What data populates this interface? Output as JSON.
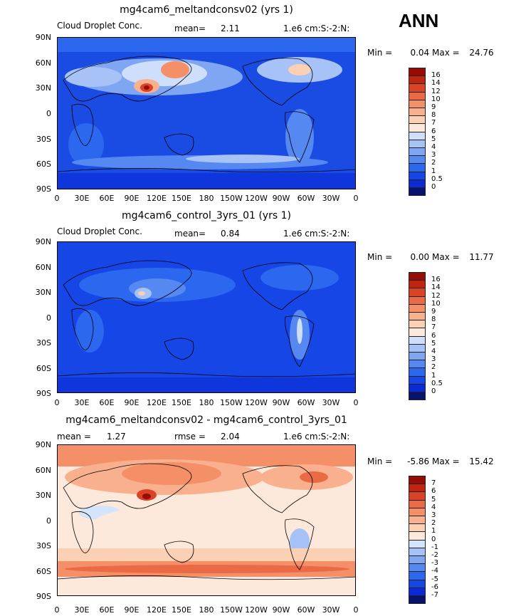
{
  "season_label": "ANN",
  "panels": [
    {
      "title": "mg4cam6_meltandconsv02 (yrs 1)",
      "variable": "Cloud Droplet Conc.",
      "stat_label": "mean=",
      "stat_value": "2.11",
      "units": "1.e6 cm:S:-2:N:",
      "min_label": "Min =",
      "min_value": "0.04",
      "max_label": "Max =",
      "max_value": "24.76"
    },
    {
      "title": "mg4cam6_control_3yrs_01 (yrs 1)",
      "variable": "Cloud Droplet Conc.",
      "stat_label": "mean=",
      "stat_value": "0.84",
      "units": "1.e6 cm:S:-2:N:",
      "min_label": "Min =",
      "min_value": "0.00",
      "max_label": "Max =",
      "max_value": "11.77"
    },
    {
      "title": "mg4cam6_meltandconsv02 - mg4cam6_control_3yrs_01",
      "mean_label": "mean =",
      "mean_value": "1.27",
      "rmse_label": "rmse =",
      "rmse_value": "2.04",
      "units": "1.e6 cm:S:-2:N:",
      "min_label": "Min =",
      "min_value": "-5.86",
      "max_label": "Max =",
      "max_value": "15.42"
    }
  ],
  "chart_data": [
    {
      "type": "heatmap",
      "title": "mg4cam6_meltandconsv02 (yrs 1)",
      "variable": "Cloud Droplet Conc.",
      "units": "1.e6 cm:S:-2:N:",
      "mean": 2.11,
      "min": 0.04,
      "max": 24.76,
      "lat_range": [
        -90,
        90
      ],
      "lon_range": [
        0,
        360
      ],
      "lat_ticks": [
        "90N",
        "60N",
        "30N",
        "0",
        "30S",
        "60S",
        "90S"
      ],
      "lon_ticks": [
        "0",
        "30E",
        "60E",
        "90E",
        "120E",
        "150E",
        "180",
        "150W",
        "120W",
        "90W",
        "60W",
        "30W",
        "0"
      ],
      "levels": [
        "0",
        "0.5",
        "1",
        "2",
        "3",
        "4",
        "5",
        "6",
        "7",
        "8",
        "9",
        "10",
        "12",
        "14",
        "16"
      ],
      "colors": [
        "#08136e",
        "#0a2ad6",
        "#1646e6",
        "#2c68ef",
        "#5588f1",
        "#7fa6f3",
        "#a7c2f6",
        "#cfdefa",
        "#fde9dc",
        "#fcd0b5",
        "#f9b08e",
        "#f58f68",
        "#ea6a46",
        "#d94426",
        "#bf2410",
        "#960c04"
      ]
    },
    {
      "type": "heatmap",
      "title": "mg4cam6_control_3yrs_01 (yrs 1)",
      "variable": "Cloud Droplet Conc.",
      "units": "1.e6 cm:S:-2:N:",
      "mean": 0.84,
      "min": 0.0,
      "max": 11.77,
      "lat_range": [
        -90,
        90
      ],
      "lon_range": [
        0,
        360
      ],
      "lat_ticks": [
        "90N",
        "60N",
        "30N",
        "0",
        "30S",
        "60S",
        "90S"
      ],
      "lon_ticks": [
        "0",
        "30E",
        "60E",
        "90E",
        "120E",
        "150E",
        "180",
        "150W",
        "120W",
        "90W",
        "60W",
        "30W",
        "0"
      ],
      "levels": [
        "0",
        "0.5",
        "1",
        "2",
        "3",
        "4",
        "5",
        "6",
        "7",
        "8",
        "9",
        "10",
        "12",
        "14",
        "16"
      ],
      "colors": [
        "#08136e",
        "#0a2ad6",
        "#1646e6",
        "#2c68ef",
        "#5588f1",
        "#7fa6f3",
        "#a7c2f6",
        "#cfdefa",
        "#fde9dc",
        "#fcd0b5",
        "#f9b08e",
        "#f58f68",
        "#ea6a46",
        "#d94426",
        "#bf2410",
        "#960c04"
      ]
    },
    {
      "type": "heatmap",
      "title": "mg4cam6_meltandconsv02 - mg4cam6_control_3yrs_01",
      "units": "1.e6 cm:S:-2:N:",
      "mean": 1.27,
      "rmse": 2.04,
      "min": -5.86,
      "max": 15.42,
      "lat_range": [
        -90,
        90
      ],
      "lon_range": [
        0,
        360
      ],
      "lat_ticks": [
        "90N",
        "60N",
        "30N",
        "0",
        "30S",
        "60S",
        "90S"
      ],
      "lon_ticks": [
        "0",
        "30E",
        "60E",
        "90E",
        "120E",
        "150E",
        "180",
        "150W",
        "120W",
        "90W",
        "60W",
        "30W",
        "0"
      ],
      "levels": [
        "-7",
        "-6",
        "-5",
        "-4",
        "-3",
        "-2",
        "-1",
        "0",
        "1",
        "2",
        "3",
        "4",
        "5",
        "6",
        "7"
      ],
      "colors": [
        "#08136e",
        "#0a2ad6",
        "#1646e6",
        "#2c68ef",
        "#5588f1",
        "#7fa6f3",
        "#a7c2f6",
        "#d4e4fb",
        "#fde9dc",
        "#fcd0b5",
        "#f9b08e",
        "#f58f68",
        "#ea6a46",
        "#d94426",
        "#bf2410",
        "#960c04"
      ]
    }
  ]
}
